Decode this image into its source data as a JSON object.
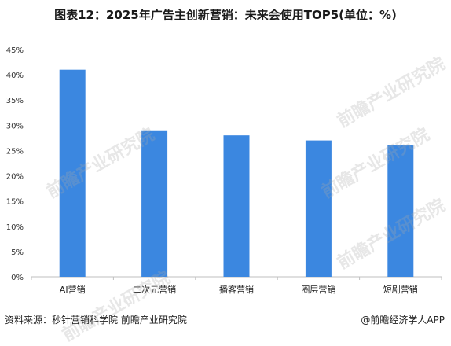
{
  "title": "图表12：2025年广告主创新营销：未来会使用TOP5(单位：%)",
  "source": "资料来源：秒针营销科学院 前瞻产业研究院",
  "credit": "@前瞻经济学人APP",
  "watermark": "前瞻产业研究院",
  "colors": {
    "bar": "#3b87e0",
    "axis": "#bfbfbf"
  },
  "chart_data": {
    "type": "bar",
    "categories": [
      "AI营销",
      "二次元营销",
      "播客营销",
      "圈层营销",
      "短剧营销"
    ],
    "values": [
      41,
      29,
      28,
      27,
      26
    ],
    "yticks": [
      "0%",
      "5%",
      "10%",
      "15%",
      "20%",
      "25%",
      "30%",
      "35%",
      "40%",
      "45%"
    ],
    "ylim": [
      0,
      45
    ],
    "grid": false
  }
}
